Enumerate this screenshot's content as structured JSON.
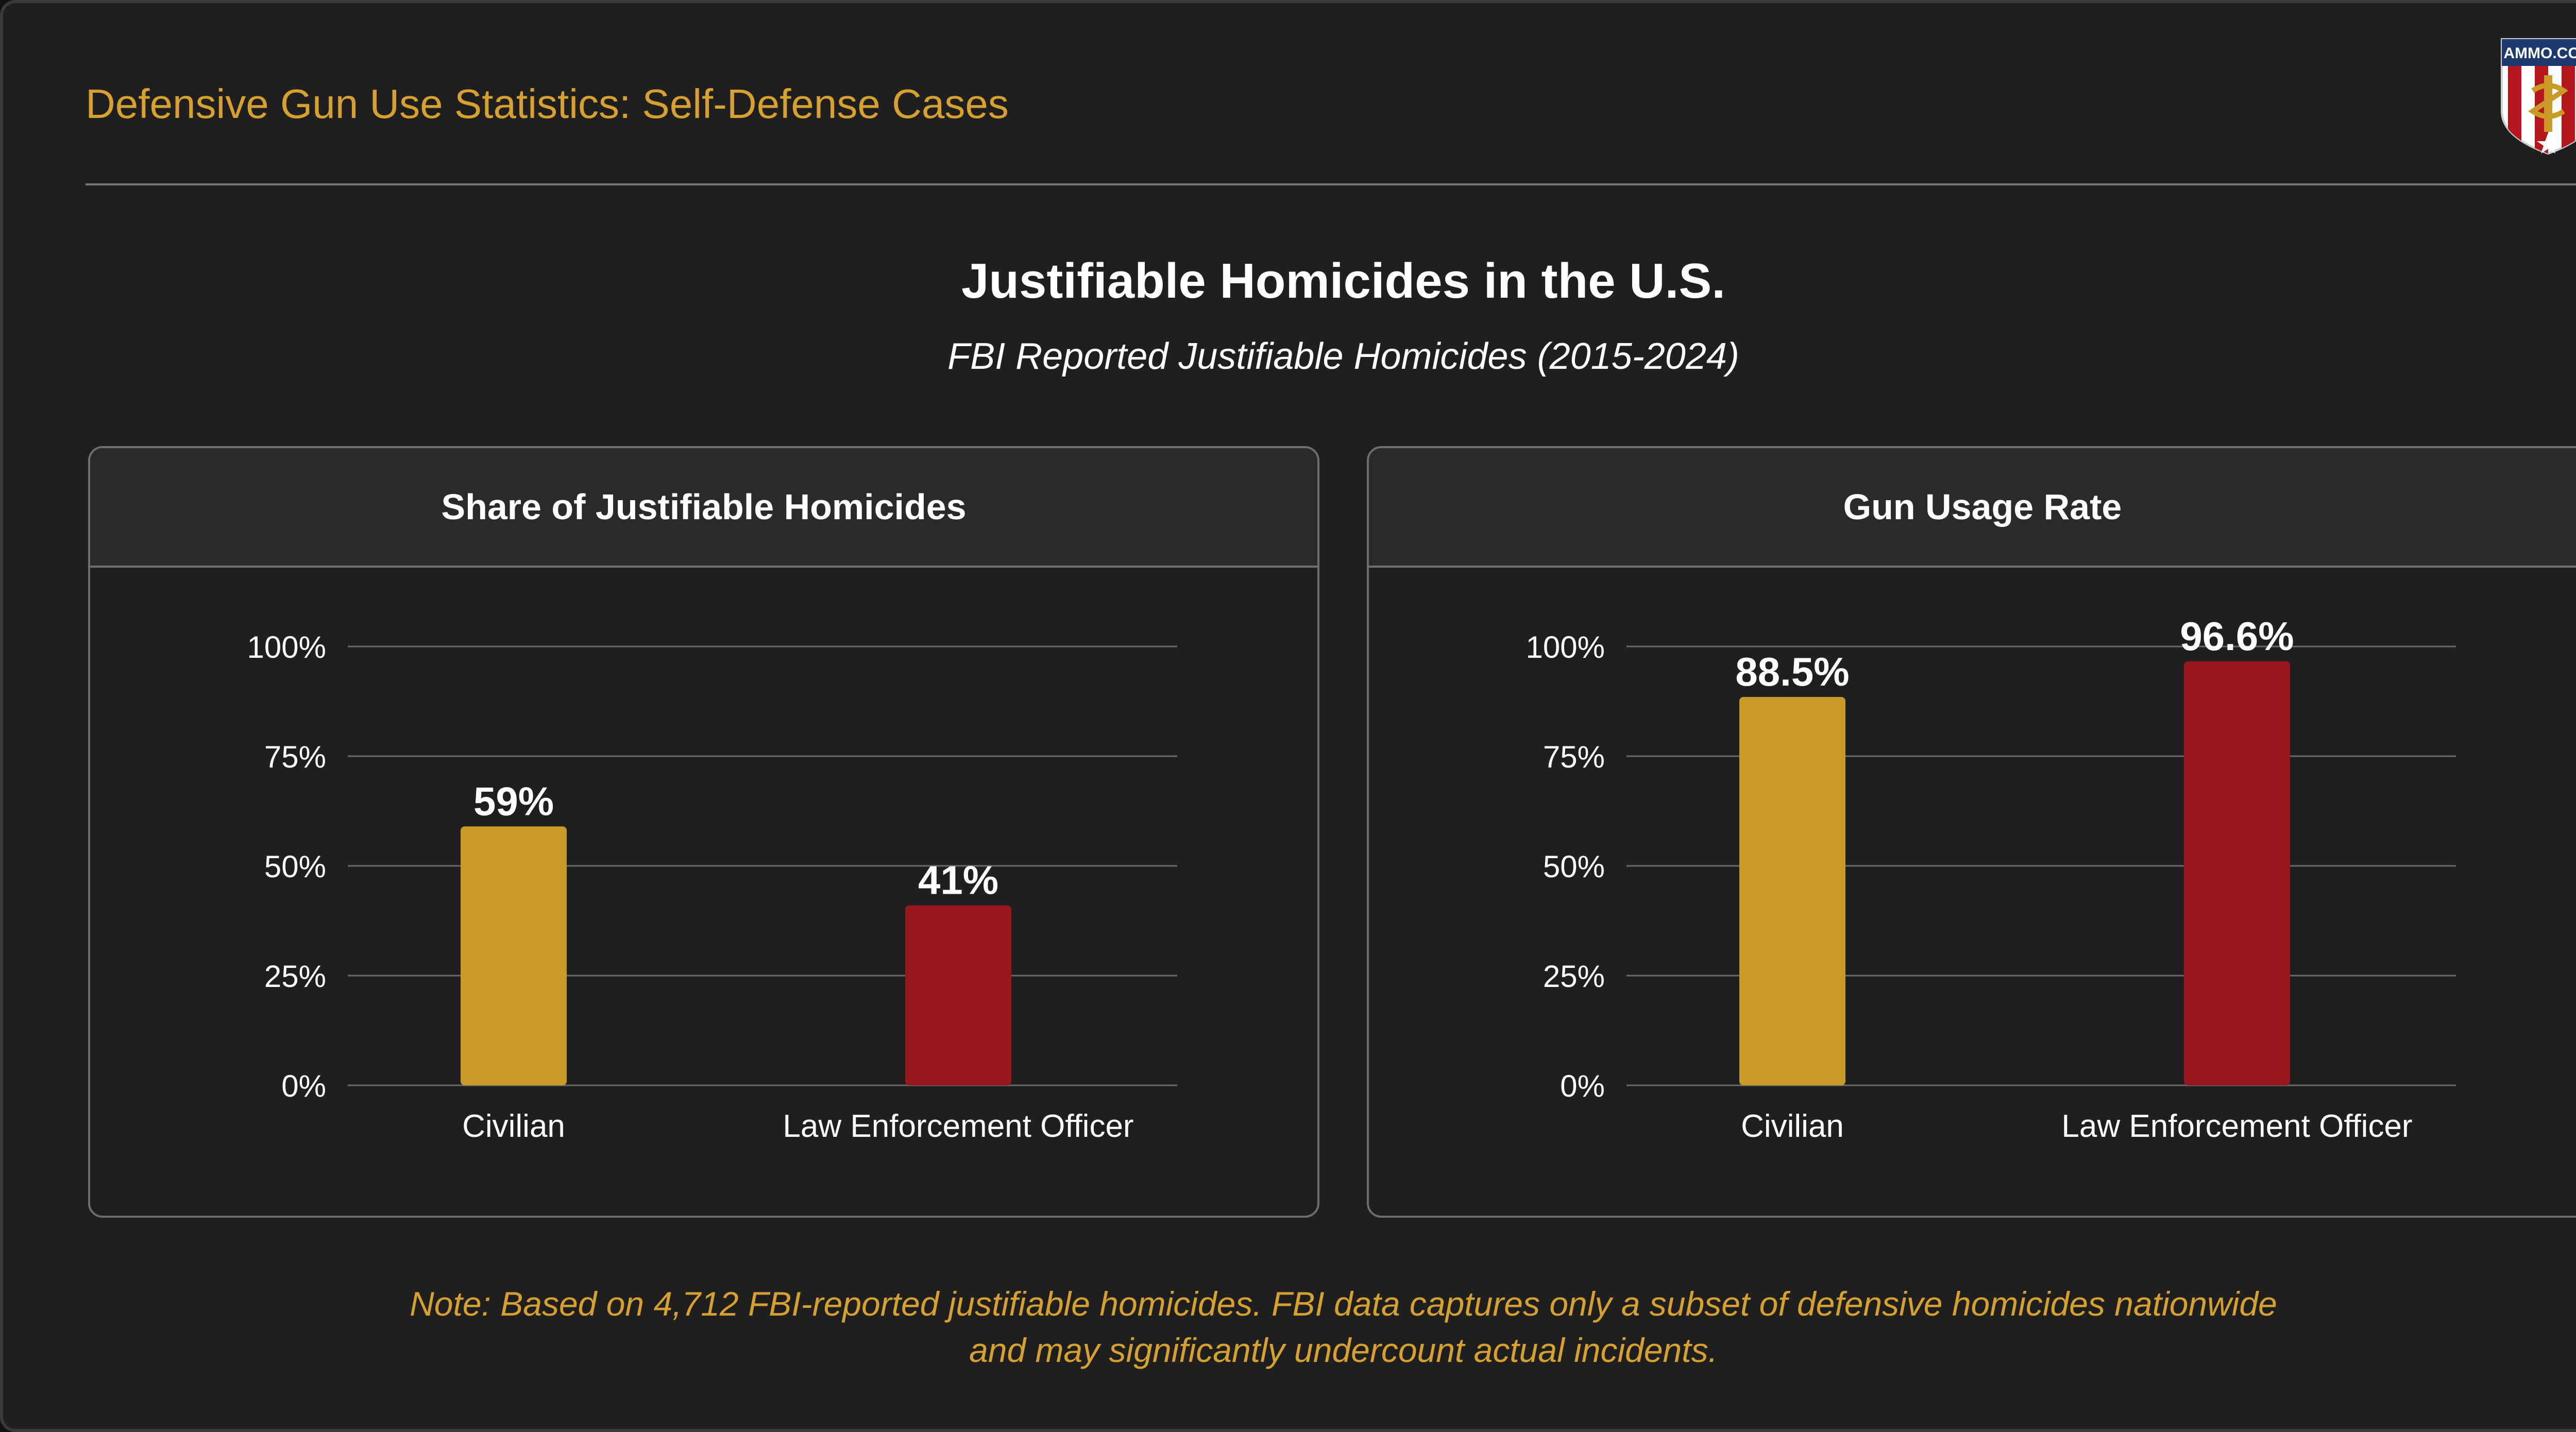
{
  "header": {
    "title": "Defensive Gun Use Statistics: Self-Defense Cases"
  },
  "logo": {
    "text": "AMMO.COM"
  },
  "main": {
    "title": "Justifiable Homicides in the U.S.",
    "subtitle": "FBI Reported Justifiable Homicides (2015-2024)"
  },
  "colors": {
    "civilian": "#c99a26",
    "law_enforcement": "#9a161d",
    "accent_text": "#d6a12e"
  },
  "chart_data": [
    {
      "type": "bar",
      "title": "Share of Justifiable Homicides",
      "categories": [
        "Civilian",
        "Law Enforcement Officer"
      ],
      "values": [
        59,
        41
      ],
      "data_labels": [
        "59%",
        "41%"
      ],
      "ylim": [
        0,
        100
      ],
      "yticks": [
        0,
        25,
        50,
        75,
        100
      ],
      "ytick_labels": [
        "0%",
        "25%",
        "50%",
        "75%",
        "100%"
      ],
      "grid": true
    },
    {
      "type": "bar",
      "title": "Gun Usage Rate",
      "categories": [
        "Civilian",
        "Law Enforcement Officer"
      ],
      "values": [
        88.5,
        96.6
      ],
      "data_labels": [
        "88.5%",
        "96.6%"
      ],
      "ylim": [
        0,
        100
      ],
      "yticks": [
        0,
        25,
        50,
        75,
        100
      ],
      "ytick_labels": [
        "0%",
        "25%",
        "50%",
        "75%",
        "100%"
      ],
      "grid": true
    }
  ],
  "footer": {
    "note_line1": "Note: Based on 4,712 FBI-reported justifiable homicides. FBI data captures only a subset of defensive homicides nationwide",
    "note_line2": "and may significantly undercount actual incidents."
  }
}
